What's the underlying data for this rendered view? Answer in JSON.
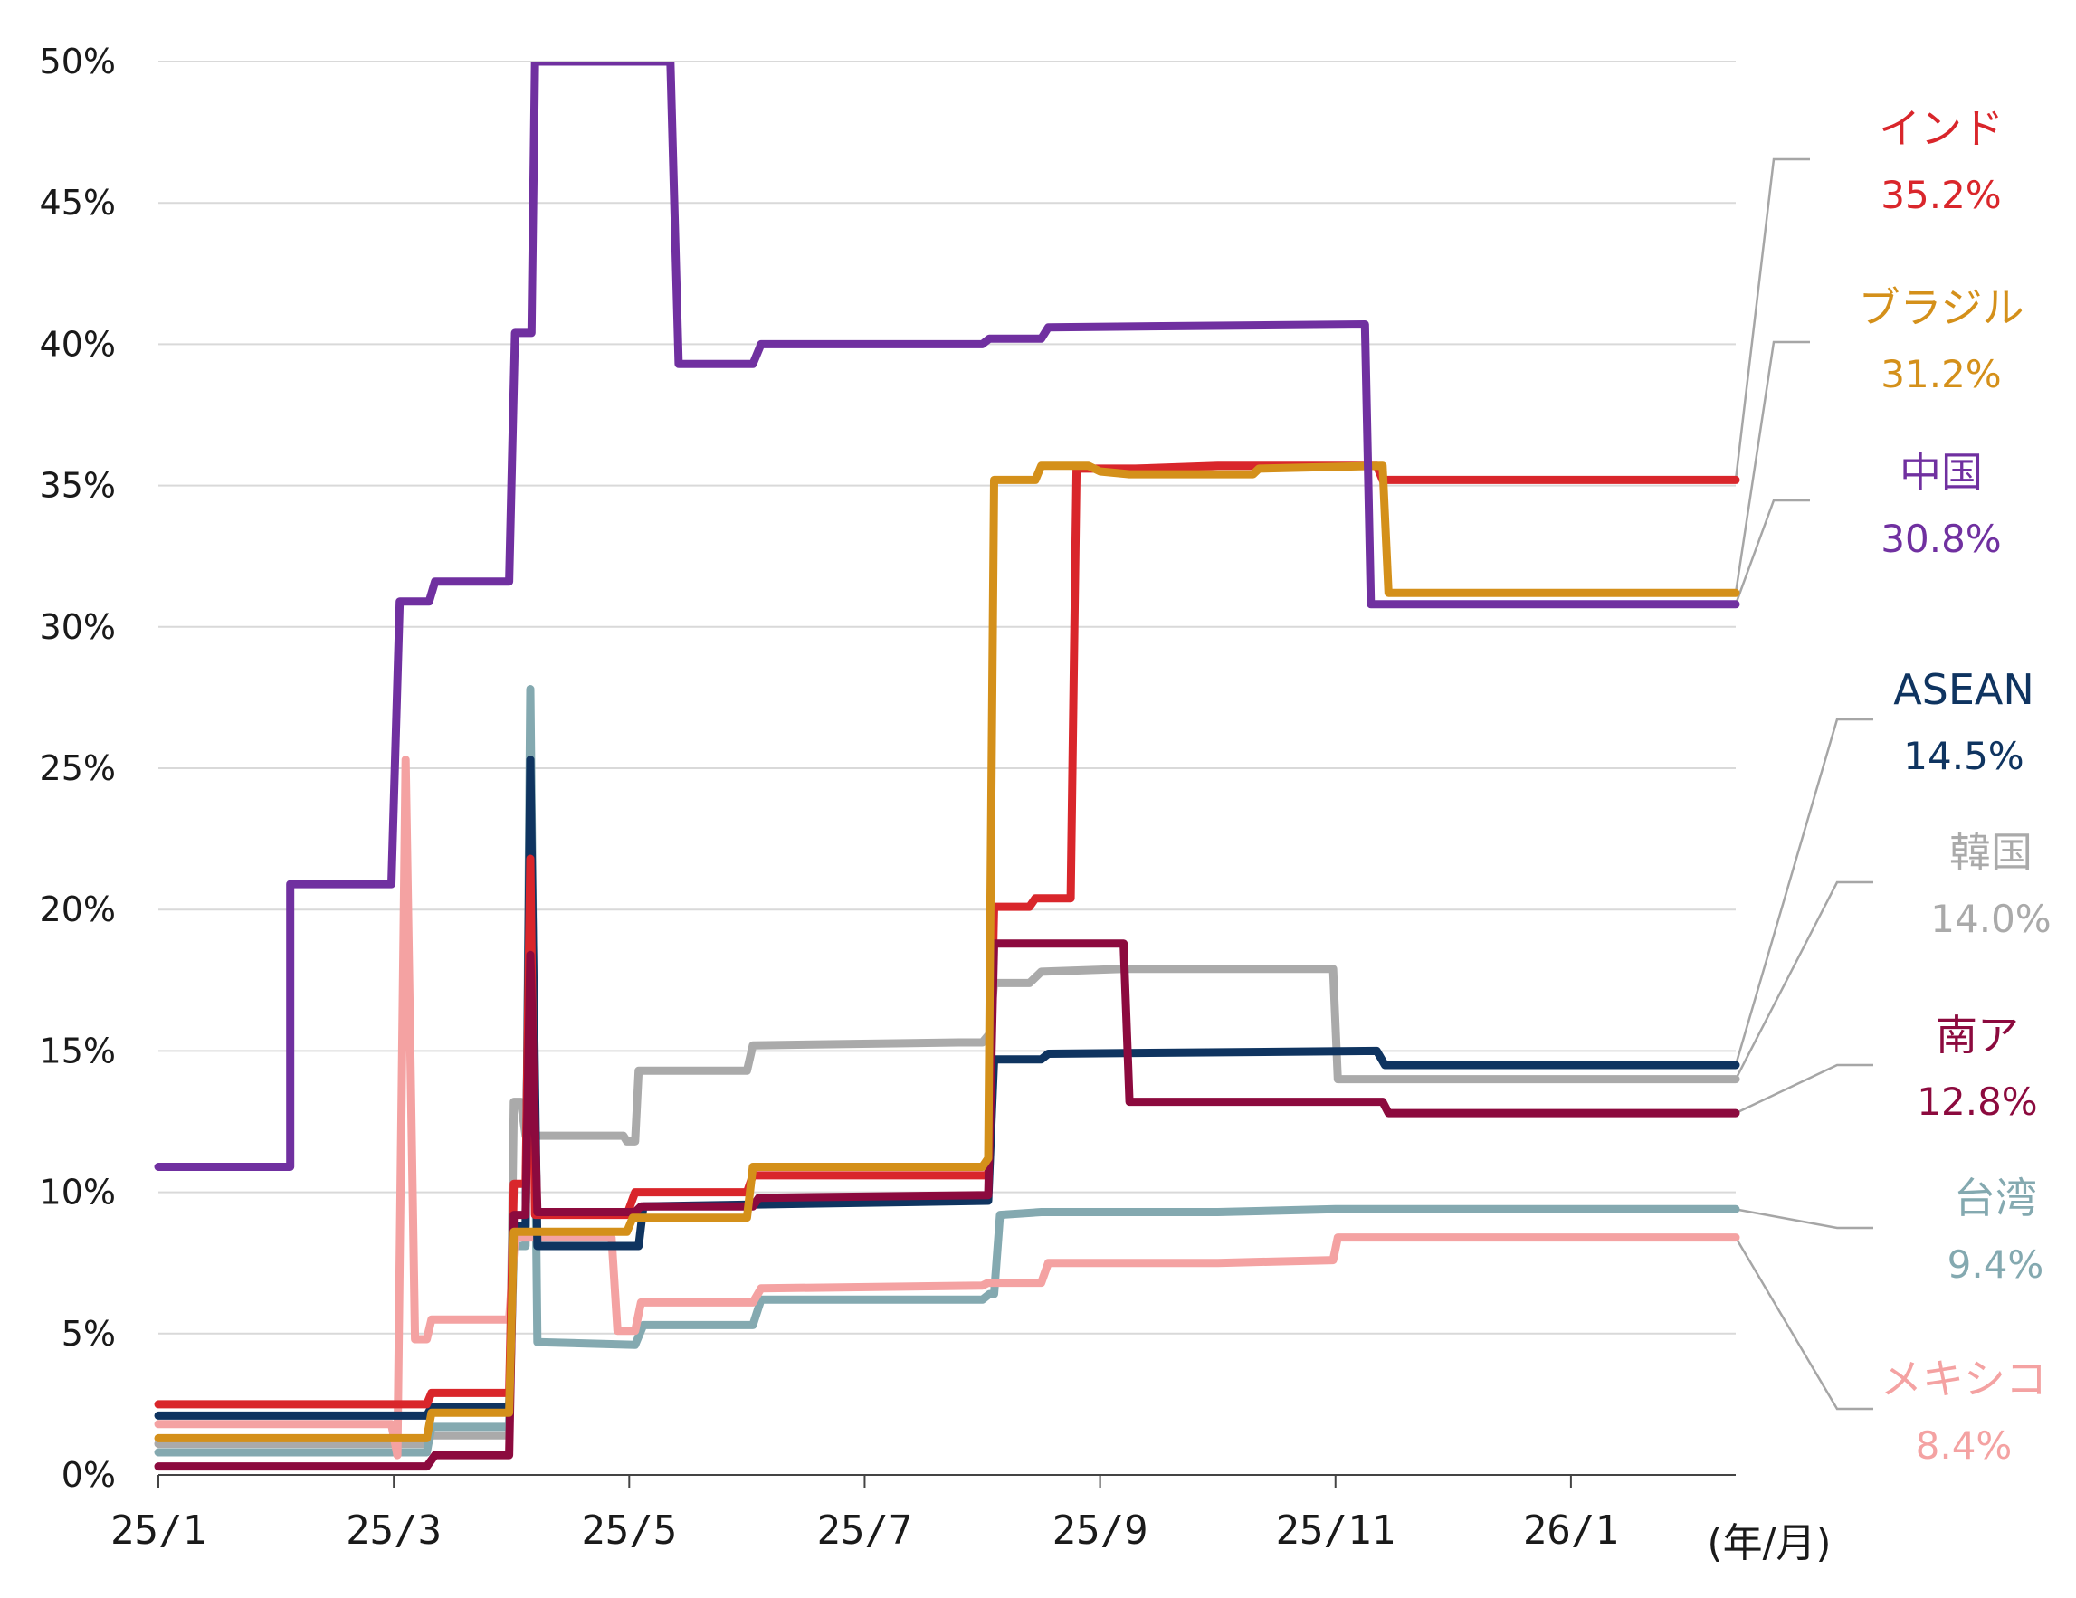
{
  "chart_data": {
    "type": "line",
    "title": "",
    "xlabel": "",
    "ylabel": "",
    "x_unit_label": "(年/月)",
    "x_range": [
      0,
      13.4
    ],
    "x_ticks": [
      {
        "label": "25/1",
        "value": 0
      },
      {
        "label": "25/3",
        "value": 2
      },
      {
        "label": "25/5",
        "value": 4
      },
      {
        "label": "25/7",
        "value": 6
      },
      {
        "label": "25/9",
        "value": 8
      },
      {
        "label": "25/11",
        "value": 10
      },
      {
        "label": "26/1",
        "value": 12
      }
    ],
    "ylim": [
      0,
      50
    ],
    "y_ticks": [
      {
        "label": "0%",
        "value": 0
      },
      {
        "label": "5%",
        "value": 5
      },
      {
        "label": "10%",
        "value": 10
      },
      {
        "label": "15%",
        "value": 15
      },
      {
        "label": "20%",
        "value": 20
      },
      {
        "label": "25%",
        "value": 25
      },
      {
        "label": "30%",
        "value": 30
      },
      {
        "label": "35%",
        "value": 35
      },
      {
        "label": "40%",
        "value": 40
      },
      {
        "label": "45%",
        "value": 45
      },
      {
        "label": "50%",
        "value": 50
      }
    ],
    "grid": true,
    "series": [
      {
        "name": "中国",
        "final_label": "30.8%",
        "color": "#7030a0",
        "label_anchor_value": 30.8,
        "points": [
          [
            0,
            10.9
          ],
          [
            1.12,
            10.9
          ],
          [
            1.12,
            20.9
          ],
          [
            1.98,
            20.9
          ],
          [
            2.05,
            30.9
          ],
          [
            2.3,
            30.9
          ],
          [
            2.35,
            31.6
          ],
          [
            2.98,
            31.6
          ],
          [
            3.03,
            40.4
          ],
          [
            3.17,
            40.4
          ],
          [
            3.2,
            50
          ],
          [
            4.35,
            50
          ],
          [
            4.42,
            39.3
          ],
          [
            5.05,
            39.3
          ],
          [
            5.12,
            40.0
          ],
          [
            7.0,
            40.0
          ],
          [
            7.06,
            40.2
          ],
          [
            7.5,
            40.2
          ],
          [
            7.56,
            40.6
          ],
          [
            10.25,
            40.7
          ],
          [
            10.3,
            30.8
          ],
          [
            13.4,
            30.8
          ]
        ]
      },
      {
        "name": "インド",
        "final_label": "35.2%",
        "color": "#d9262b",
        "label_anchor_value": 35.2,
        "points": [
          [
            0,
            2.5
          ],
          [
            2.28,
            2.5
          ],
          [
            2.32,
            2.9
          ],
          [
            2.98,
            2.9
          ],
          [
            3.02,
            10.3
          ],
          [
            3.12,
            10.3
          ],
          [
            3.16,
            21.8
          ],
          [
            3.2,
            9.2
          ],
          [
            3.98,
            9.2
          ],
          [
            4.05,
            10.0
          ],
          [
            5.0,
            10.0
          ],
          [
            5.05,
            10.6
          ],
          [
            7.05,
            10.6
          ],
          [
            7.1,
            20.1
          ],
          [
            7.4,
            20.1
          ],
          [
            7.45,
            20.4
          ],
          [
            7.75,
            20.4
          ],
          [
            7.8,
            35.6
          ],
          [
            8.3,
            35.6
          ],
          [
            9.0,
            35.7
          ],
          [
            10.35,
            35.7
          ],
          [
            10.4,
            35.2
          ],
          [
            13.4,
            35.2
          ]
        ]
      },
      {
        "name": "ブラジル",
        "final_label": "31.2%",
        "color": "#d4901a",
        "label_anchor_value": 31.2,
        "points": [
          [
            0,
            1.3
          ],
          [
            2.28,
            1.3
          ],
          [
            2.32,
            2.2
          ],
          [
            2.98,
            2.2
          ],
          [
            3.02,
            8.6
          ],
          [
            3.98,
            8.6
          ],
          [
            4.03,
            9.1
          ],
          [
            5.0,
            9.1
          ],
          [
            5.05,
            10.9
          ],
          [
            7.0,
            10.9
          ],
          [
            7.05,
            11.2
          ],
          [
            7.1,
            35.2
          ],
          [
            7.45,
            35.2
          ],
          [
            7.5,
            35.7
          ],
          [
            7.9,
            35.7
          ],
          [
            8.0,
            35.5
          ],
          [
            8.25,
            35.4
          ],
          [
            9.3,
            35.4
          ],
          [
            9.35,
            35.6
          ],
          [
            10.4,
            35.7
          ],
          [
            10.45,
            31.2
          ],
          [
            13.4,
            31.2
          ]
        ]
      },
      {
        "name": "ASEAN",
        "final_label": "14.5%",
        "color": "#0f3460",
        "label_anchor_value": 14.5,
        "points": [
          [
            0,
            2.1
          ],
          [
            2.28,
            2.1
          ],
          [
            2.32,
            2.4
          ],
          [
            2.98,
            2.4
          ],
          [
            3.02,
            8.8
          ],
          [
            3.12,
            8.8
          ],
          [
            3.16,
            25.3
          ],
          [
            3.22,
            8.1
          ],
          [
            4.08,
            8.1
          ],
          [
            4.12,
            9.5
          ],
          [
            7.05,
            9.7
          ],
          [
            7.1,
            14.7
          ],
          [
            7.5,
            14.7
          ],
          [
            7.56,
            14.9
          ],
          [
            10.35,
            15.0
          ],
          [
            10.42,
            14.5
          ],
          [
            13.4,
            14.5
          ]
        ]
      },
      {
        "name": "韓国",
        "final_label": "14.0%",
        "color": "#aaaaaa",
        "label_anchor_value": 14.0,
        "points": [
          [
            0,
            1.1
          ],
          [
            2.28,
            1.1
          ],
          [
            2.32,
            1.4
          ],
          [
            2.98,
            1.4
          ],
          [
            3.02,
            13.2
          ],
          [
            3.08,
            13.2
          ],
          [
            3.12,
            12.0
          ],
          [
            3.95,
            12.0
          ],
          [
            3.98,
            11.8
          ],
          [
            4.05,
            11.8
          ],
          [
            4.08,
            14.3
          ],
          [
            5.0,
            14.3
          ],
          [
            5.05,
            15.2
          ],
          [
            6.8,
            15.3
          ],
          [
            7.0,
            15.3
          ],
          [
            7.06,
            15.6
          ],
          [
            7.1,
            17.4
          ],
          [
            7.4,
            17.4
          ],
          [
            7.5,
            17.8
          ],
          [
            8.2,
            17.9
          ],
          [
            9.98,
            17.9
          ],
          [
            10.02,
            14.0
          ],
          [
            13.4,
            14.0
          ]
        ]
      },
      {
        "name": "南ア",
        "final_label": "12.8%",
        "color": "#8c0a3e",
        "label_anchor_value": 12.8,
        "points": [
          [
            0,
            0.3
          ],
          [
            2.28,
            0.3
          ],
          [
            2.35,
            0.7
          ],
          [
            2.98,
            0.7
          ],
          [
            3.02,
            9.2
          ],
          [
            3.12,
            9.2
          ],
          [
            3.16,
            18.4
          ],
          [
            3.22,
            9.3
          ],
          [
            4.05,
            9.3
          ],
          [
            4.1,
            9.5
          ],
          [
            5.05,
            9.5
          ],
          [
            5.1,
            9.8
          ],
          [
            7.05,
            9.9
          ],
          [
            7.1,
            18.8
          ],
          [
            8.2,
            18.8
          ],
          [
            8.25,
            13.2
          ],
          [
            10.4,
            13.2
          ],
          [
            10.45,
            12.8
          ],
          [
            13.4,
            12.8
          ]
        ]
      },
      {
        "name": "台湾",
        "final_label": "9.4%",
        "color": "#84a9b0",
        "label_anchor_value": 9.4,
        "points": [
          [
            0,
            0.8
          ],
          [
            2.28,
            0.8
          ],
          [
            2.32,
            1.7
          ],
          [
            2.98,
            1.7
          ],
          [
            3.02,
            8.1
          ],
          [
            3.12,
            8.1
          ],
          [
            3.16,
            27.8
          ],
          [
            3.22,
            4.7
          ],
          [
            4.05,
            4.6
          ],
          [
            4.12,
            5.3
          ],
          [
            5.05,
            5.3
          ],
          [
            5.12,
            6.2
          ],
          [
            7.0,
            6.2
          ],
          [
            7.06,
            6.4
          ],
          [
            7.1,
            6.4
          ],
          [
            7.15,
            9.2
          ],
          [
            7.5,
            9.3
          ],
          [
            9.0,
            9.3
          ],
          [
            10.0,
            9.4
          ],
          [
            13.4,
            9.4
          ]
        ]
      },
      {
        "name": "メキシコ",
        "final_label": "8.4%",
        "color": "#f4a2a2",
        "label_anchor_value": 8.4,
        "points": [
          [
            0,
            1.8
          ],
          [
            1.98,
            1.8
          ],
          [
            2.03,
            0.7
          ],
          [
            2.1,
            25.3
          ],
          [
            2.18,
            4.8
          ],
          [
            2.28,
            4.8
          ],
          [
            2.32,
            5.5
          ],
          [
            2.98,
            5.5
          ],
          [
            3.03,
            8.4
          ],
          [
            3.85,
            8.4
          ],
          [
            3.9,
            5.1
          ],
          [
            4.05,
            5.1
          ],
          [
            4.1,
            6.1
          ],
          [
            5.05,
            6.1
          ],
          [
            5.12,
            6.6
          ],
          [
            7.0,
            6.7
          ],
          [
            7.05,
            6.8
          ],
          [
            7.5,
            6.8
          ],
          [
            7.56,
            7.5
          ],
          [
            9.0,
            7.5
          ],
          [
            9.98,
            7.6
          ],
          [
            10.02,
            8.4
          ],
          [
            13.4,
            8.4
          ]
        ]
      }
    ]
  }
}
